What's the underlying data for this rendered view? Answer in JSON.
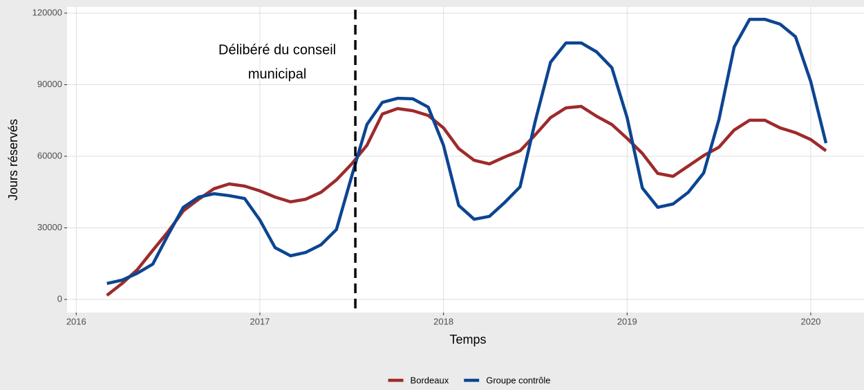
{
  "chart_data": {
    "type": "line",
    "xlabel": "Temps",
    "ylabel": "Jours réservés",
    "x": [
      2016.167,
      2016.25,
      2016.333,
      2016.417,
      2016.5,
      2016.583,
      2016.667,
      2016.75,
      2016.833,
      2016.917,
      2017.0,
      2017.083,
      2017.167,
      2017.25,
      2017.333,
      2017.417,
      2017.5,
      2017.583,
      2017.667,
      2017.75,
      2017.833,
      2017.917,
      2018.0,
      2018.083,
      2018.167,
      2018.25,
      2018.333,
      2018.417,
      2018.5,
      2018.583,
      2018.667,
      2018.75,
      2018.833,
      2018.917,
      2019.0,
      2019.083,
      2019.167,
      2019.25,
      2019.333,
      2019.417,
      2019.5,
      2019.583,
      2019.667,
      2019.75,
      2019.833,
      2019.917,
      2020.0,
      2020.083
    ],
    "series": [
      {
        "name": "Bordeaux",
        "color": "#9e2a2b",
        "values": [
          1700,
          6700,
          12500,
          20600,
          28400,
          37100,
          42000,
          46400,
          48400,
          47500,
          45500,
          42900,
          40900,
          42000,
          44900,
          50100,
          56800,
          64600,
          77700,
          80000,
          79100,
          77100,
          71900,
          63200,
          58300,
          56800,
          59700,
          62300,
          69000,
          76200,
          80300,
          80900,
          76800,
          73300,
          67500,
          61200,
          52800,
          51600,
          55900,
          60300,
          63800,
          71000,
          75100,
          75100,
          71900,
          69900,
          67000,
          62300
        ]
      },
      {
        "name": "Groupe contrôle",
        "color": "#0c4591",
        "values": [
          6700,
          8100,
          11000,
          14800,
          27000,
          38600,
          42900,
          44300,
          43500,
          42300,
          33300,
          21700,
          18300,
          19700,
          22900,
          29300,
          51600,
          73300,
          82600,
          84300,
          84100,
          80600,
          64600,
          39400,
          33600,
          34800,
          40600,
          47200,
          74800,
          99400,
          107500,
          107500,
          103800,
          97100,
          76200,
          46700,
          38600,
          40000,
          44900,
          53000,
          75400,
          105800,
          117400,
          117400,
          115400,
          110100,
          91300,
          65500
        ]
      }
    ],
    "vline": {
      "x": 2017.52,
      "label": [
        "Délibéré du conseil",
        "municipal"
      ]
    },
    "xlim": [
      2015.95,
      2020.29
    ],
    "xticks": [
      2016,
      2017,
      2018,
      2019,
      2020
    ],
    "ylim": [
      -5500,
      122600
    ],
    "yticks": [
      0,
      30000,
      60000,
      90000,
      120000
    ],
    "grid": true,
    "legend": "bottom"
  }
}
